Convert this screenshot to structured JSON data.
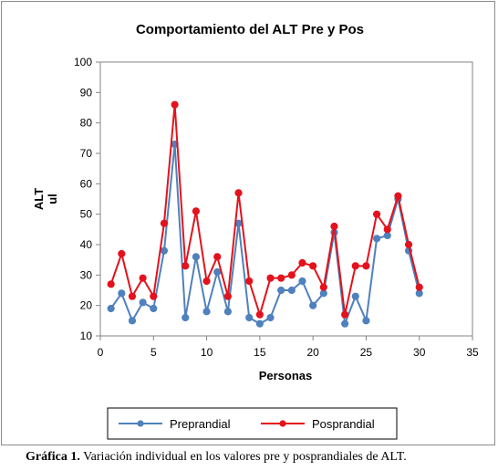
{
  "chart_data": {
    "type": "line",
    "title": "Comportamiento del ALT Pre y Pos",
    "xlabel": "Personas",
    "ylabel": "ALT\nul",
    "xlim": [
      0,
      35
    ],
    "ylim": [
      10,
      100
    ],
    "x_ticks": [
      0,
      5,
      10,
      15,
      20,
      25,
      30,
      35
    ],
    "y_ticks": [
      10,
      20,
      30,
      40,
      50,
      60,
      70,
      80,
      90,
      100
    ],
    "grid": false,
    "legend_position": "bottom",
    "x": [
      1,
      2,
      3,
      4,
      5,
      6,
      7,
      8,
      9,
      10,
      11,
      12,
      13,
      14,
      15,
      16,
      17,
      18,
      19,
      20,
      21,
      22,
      23,
      24,
      25,
      26,
      27,
      28,
      29,
      30
    ],
    "series": [
      {
        "name": "Preprandial",
        "color": "#4f81bd",
        "values": [
          19,
          24,
          15,
          21,
          19,
          38,
          73,
          16,
          36,
          18,
          31,
          18,
          47,
          16,
          14,
          16,
          25,
          25,
          28,
          20,
          24,
          44,
          14,
          23,
          15,
          42,
          43,
          55,
          38,
          24
        ]
      },
      {
        "name": "Posprandial",
        "color": "#e3121c",
        "values": [
          27,
          37,
          23,
          29,
          23,
          47,
          86,
          33,
          51,
          28,
          36,
          23,
          57,
          28,
          17,
          29,
          29,
          30,
          34,
          33,
          26,
          46,
          17,
          33,
          33,
          50,
          45,
          56,
          40,
          26
        ]
      }
    ]
  },
  "caption": {
    "label": "Gráfica 1.",
    "text": " Variación individual en los valores pre y posprandiales de ALT."
  }
}
